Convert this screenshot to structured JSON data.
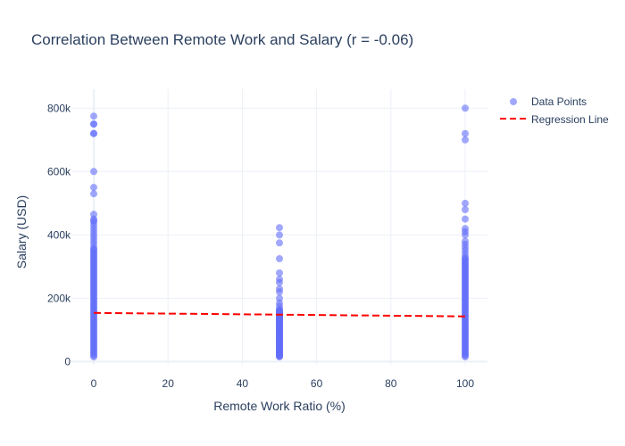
{
  "chart_data": {
    "type": "scatter",
    "title": "Correlation Between Remote Work and Salary (r = -0.06)",
    "xlabel": "Remote Work Ratio (%)",
    "ylabel": "Salary (USD)",
    "xlim": [
      -6,
      106
    ],
    "ylim": [
      -10000,
      860000
    ],
    "x_ticks": [
      0,
      20,
      40,
      60,
      80,
      100
    ],
    "x_tick_labels": [
      "0",
      "20",
      "40",
      "60",
      "80",
      "100"
    ],
    "y_ticks": [
      0,
      200000,
      400000,
      600000,
      800000
    ],
    "y_tick_labels": [
      "0",
      "200k",
      "400k",
      "600k",
      "800k"
    ],
    "grid": true,
    "legend_position": "top-right",
    "series": [
      {
        "name": "Data Points",
        "mode": "markers",
        "color": "#636efa",
        "opacity": 0.6,
        "clusters": [
          {
            "x": 0,
            "dense_range": [
              15000,
              360000
            ],
            "values": [
              775000,
              750000,
              750000,
              720000,
              720000,
              600000,
              550000,
              530000,
              465000,
              450000,
              445000,
              440000,
              430000,
              420000,
              410000,
              400000,
              390000,
              380000,
              370000
            ]
          },
          {
            "x": 50,
            "dense_range": [
              15000,
              165000
            ],
            "values": [
              423000,
              400000,
              375000,
              325000,
              280000,
              260000,
              250000,
              230000,
              220000,
              200000,
              185000,
              175000
            ]
          },
          {
            "x": 100,
            "dense_range": [
              15000,
              330000
            ],
            "values": [
              800000,
              720000,
              700000,
              500000,
              480000,
              450000,
              420000,
              410000,
              400000,
              380000,
              370000,
              360000,
              350000,
              340000
            ]
          }
        ]
      },
      {
        "name": "Regression Line",
        "mode": "lines",
        "dash": "dash",
        "color": "#ff0000",
        "x": [
          0,
          100
        ],
        "y": [
          154000,
          143000
        ]
      }
    ]
  }
}
